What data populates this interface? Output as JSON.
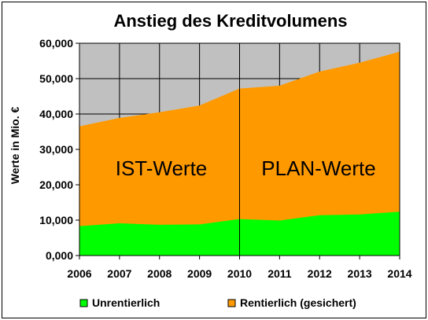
{
  "chart_data": {
    "type": "area",
    "title": "Anstieg des Kreditvolumens",
    "xlabel": "",
    "ylabel": "Werte in Mio. €",
    "x": [
      "2006",
      "2007",
      "2008",
      "2009",
      "2010",
      "2011",
      "2012",
      "2013",
      "2014"
    ],
    "ylim": [
      0,
      60000
    ],
    "yticks": [
      0,
      10000,
      20000,
      30000,
      40000,
      50000,
      60000
    ],
    "ytick_labels": [
      "0,000",
      "10,000",
      "20,000",
      "30,000",
      "40,000",
      "50,000",
      "60,000"
    ],
    "stacked": true,
    "series": [
      {
        "name": "Unrentierlich",
        "values": [
          8300,
          9100,
          8700,
          8800,
          10300,
          9900,
          11400,
          11600,
          12400
        ]
      },
      {
        "name": "Rentierlich (gesichert)",
        "values": [
          28200,
          29800,
          31800,
          33600,
          36900,
          38100,
          40600,
          42900,
          45200
        ]
      }
    ],
    "annotations": [
      "IST-Werte",
      "PLAN-Werte"
    ],
    "divider_x": "2010",
    "legend_position": "bottom",
    "grid": true,
    "colors": {
      "series": [
        "#00ff00",
        "#ff9900"
      ],
      "plot_background": "#c0c0c0",
      "grid": "#000000"
    }
  }
}
